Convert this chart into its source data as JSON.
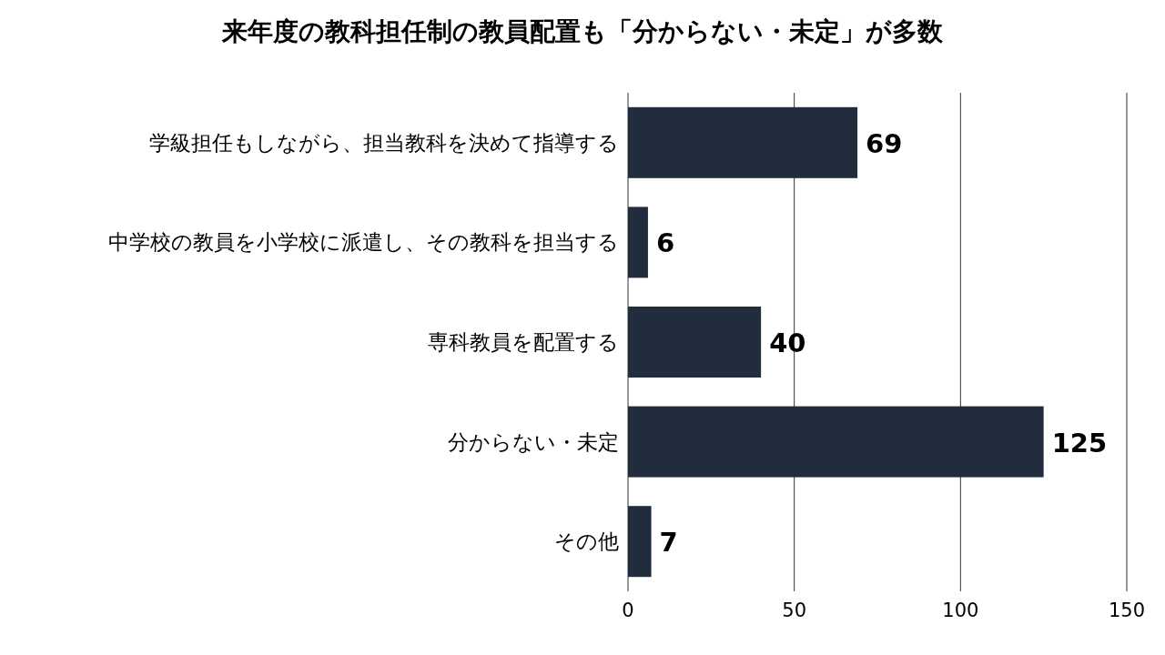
{
  "chart_data": {
    "type": "bar",
    "orientation": "horizontal",
    "title": "来年度の教科担任制の教員配置も「分からない・未定」が多数",
    "categories": [
      "学級担任もしながら、担当教科を決めて指導する",
      "中学校の教員を小学校に派遣し、その教科を担当する",
      "専科教員を配置する",
      "分からない・未定",
      "その他"
    ],
    "values": [
      69,
      6,
      40,
      125,
      7
    ],
    "color": "#212d3d",
    "xlim": [
      0,
      150
    ],
    "xticks": [
      0,
      50,
      100,
      150
    ],
    "grid": "x",
    "data_labels": true
  }
}
